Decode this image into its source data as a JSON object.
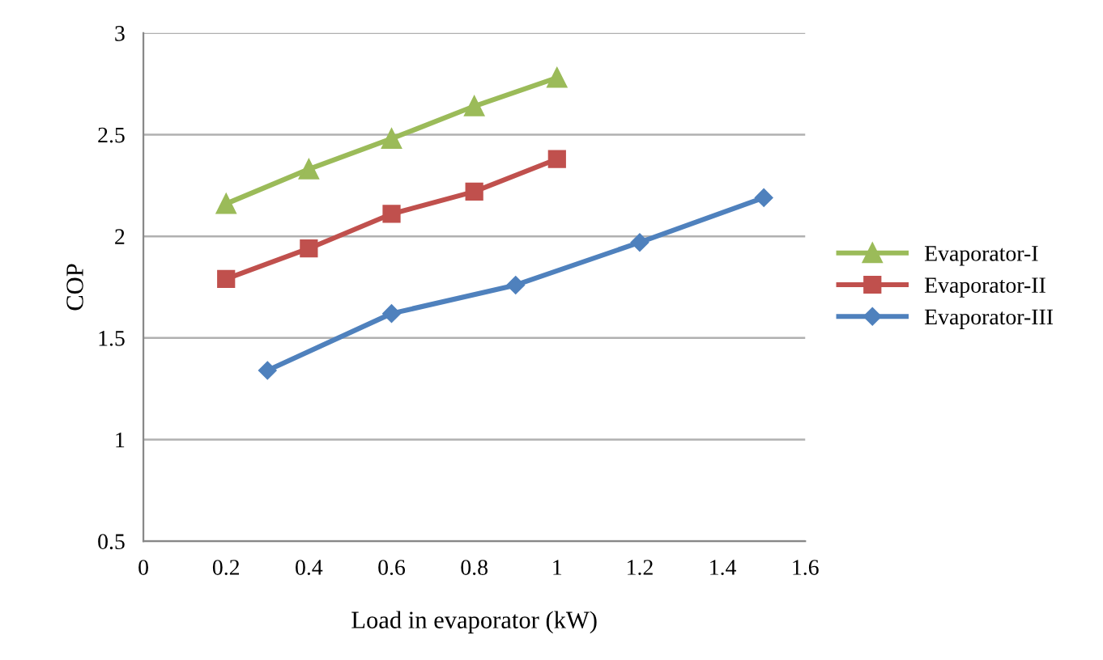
{
  "chart_data": {
    "type": "line",
    "xlabel": "Load in evaporator (kW)",
    "ylabel": "COP",
    "xlim": [
      0,
      1.6
    ],
    "xticks": [
      0,
      0.2,
      0.4,
      0.6,
      0.8,
      1,
      1.2,
      1.4,
      1.6
    ],
    "ylim": [
      0.5,
      3
    ],
    "yticks": [
      0.5,
      1,
      1.5,
      2,
      2.5,
      3
    ],
    "grid": "y",
    "legend": "right",
    "series": [
      {
        "name": "Evaporator-I",
        "color": "#9bbb59",
        "marker": "triangle",
        "x": [
          0.2,
          0.4,
          0.6,
          0.8,
          1.0
        ],
        "values": [
          2.16,
          2.33,
          2.48,
          2.64,
          2.78
        ]
      },
      {
        "name": "Evaporator-II",
        "color": "#c0504d",
        "marker": "square",
        "x": [
          0.2,
          0.4,
          0.6,
          0.8,
          1.0
        ],
        "values": [
          1.79,
          1.94,
          2.11,
          2.22,
          2.38
        ]
      },
      {
        "name": "Evaporator-III",
        "color": "#4f81bd",
        "marker": "diamond",
        "x": [
          0.3,
          0.6,
          0.9,
          1.2,
          1.5
        ],
        "values": [
          1.34,
          1.62,
          1.76,
          1.97,
          2.19
        ]
      }
    ]
  }
}
